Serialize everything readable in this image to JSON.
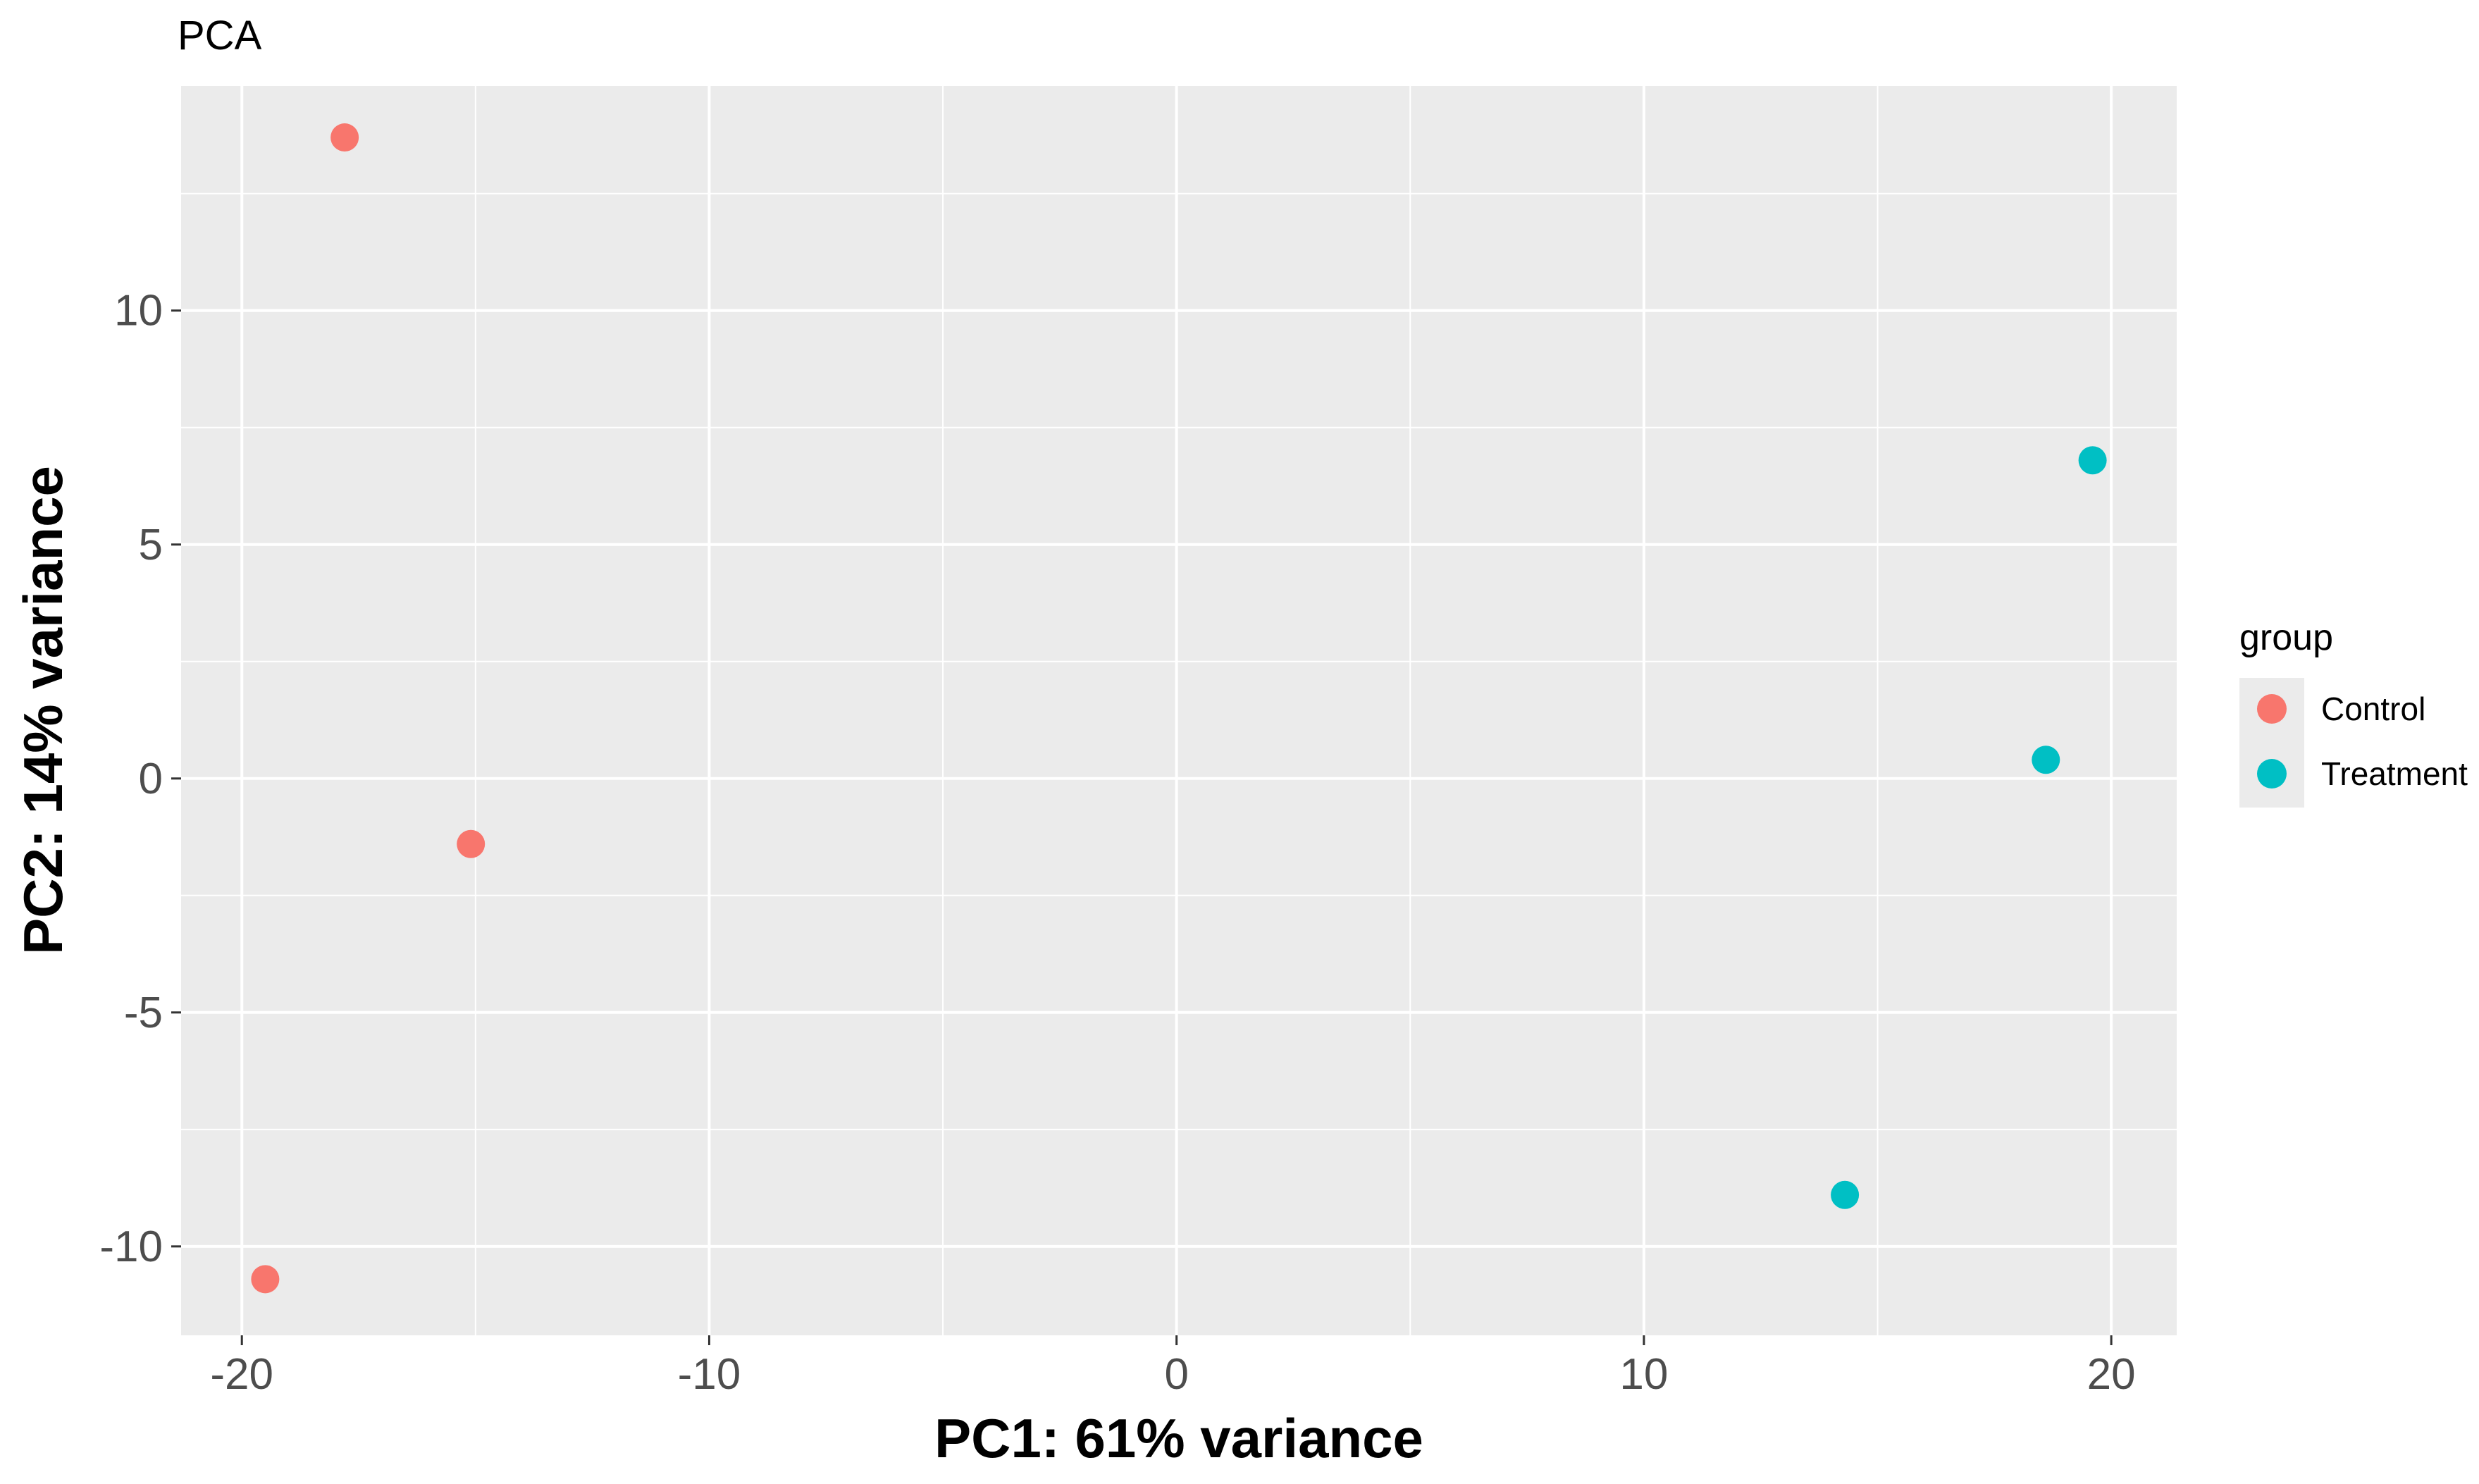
{
  "chart_data": {
    "type": "scatter",
    "title": "PCA",
    "xlabel": "PC1: 61% variance",
    "ylabel": "PC2: 14% variance",
    "xlim": [
      -21.3,
      21.4
    ],
    "ylim": [
      -11.9,
      14.8
    ],
    "x_ticks": [
      -20,
      -10,
      0,
      10,
      20
    ],
    "x_tick_labels": [
      "-20",
      "-10",
      "0",
      "10",
      "20"
    ],
    "y_ticks": [
      -10,
      -5,
      0,
      5,
      10
    ],
    "y_tick_labels": [
      "-10",
      "-5",
      "0",
      "5",
      "10"
    ],
    "grid": true,
    "legend": {
      "title": "group",
      "position": "right"
    },
    "series": [
      {
        "name": "Control",
        "color": "#F8766D",
        "points": [
          {
            "x": -17.8,
            "y": 13.7
          },
          {
            "x": -15.1,
            "y": -1.4
          },
          {
            "x": -19.5,
            "y": -10.7
          }
        ]
      },
      {
        "name": "Treatment",
        "color": "#00BFC4",
        "points": [
          {
            "x": 19.6,
            "y": 6.8
          },
          {
            "x": 18.6,
            "y": 0.4
          },
          {
            "x": 14.3,
            "y": -8.9
          }
        ]
      }
    ]
  }
}
